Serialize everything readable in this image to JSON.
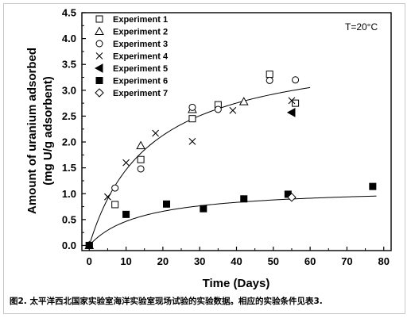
{
  "caption": "图2.  太平洋西北国家实验室海洋实验室现场试验的实验数据。相应的实验条件见表3.",
  "chart_data": {
    "type": "scatter",
    "title": "",
    "xlabel": "Time (Days)",
    "ylabel_line1": "Amount of uranium adsorbed",
    "ylabel_line2": "(mg U/g adsorbent)",
    "annotation": "T=20°C",
    "xlim": [
      -2,
      82
    ],
    "ylim": [
      -0.1,
      4.5
    ],
    "xticks": [
      "0",
      "10",
      "20",
      "30",
      "40",
      "50",
      "60",
      "70",
      "80"
    ],
    "yticks": [
      "0.0",
      "0.5",
      "1.0",
      "1.5",
      "2.0",
      "2.5",
      "3.0",
      "3.5",
      "4.0",
      "4.5"
    ],
    "xtick_values": [
      0,
      10,
      20,
      30,
      40,
      50,
      60,
      70,
      80
    ],
    "ytick_values": [
      0,
      0.5,
      1.0,
      1.5,
      2.0,
      2.5,
      3.0,
      3.5,
      4.0,
      4.5
    ],
    "legend_position": "top-left",
    "series": [
      {
        "name": "Experiment 1",
        "marker": "square-open",
        "points": [
          [
            0,
            0
          ],
          [
            7,
            0.79
          ],
          [
            14,
            1.66
          ],
          [
            28,
            2.45
          ],
          [
            35,
            2.72
          ],
          [
            49,
            3.31
          ],
          [
            56,
            2.75
          ]
        ]
      },
      {
        "name": "Experiment 2",
        "marker": "triangle-open",
        "points": [
          [
            0,
            0
          ],
          [
            14,
            1.93
          ],
          [
            28,
            2.63
          ],
          [
            42,
            2.78
          ]
        ]
      },
      {
        "name": "Experiment 3",
        "marker": "circle-open",
        "points": [
          [
            0,
            0
          ],
          [
            7,
            1.11
          ],
          [
            14,
            1.48
          ],
          [
            28,
            2.67
          ],
          [
            35,
            2.63
          ],
          [
            49,
            3.19
          ],
          [
            56,
            3.2
          ]
        ]
      },
      {
        "name": "Experiment 4",
        "marker": "x",
        "points": [
          [
            0,
            0
          ],
          [
            5,
            0.94
          ],
          [
            10,
            1.6
          ],
          [
            18,
            2.17
          ],
          [
            28,
            2.01
          ],
          [
            39,
            2.61
          ],
          [
            55,
            2.8
          ]
        ]
      },
      {
        "name": "Experiment 5",
        "marker": "triangle-left-filled",
        "points": [
          [
            55,
            2.57
          ]
        ]
      },
      {
        "name": "Experiment 6",
        "marker": "square-filled",
        "points": [
          [
            0,
            0
          ],
          [
            10,
            0.6
          ],
          [
            21,
            0.8
          ],
          [
            31,
            0.71
          ],
          [
            42,
            0.9
          ],
          [
            54,
            0.99
          ],
          [
            77,
            1.14
          ]
        ]
      },
      {
        "name": "Experiment 7",
        "marker": "diamond-open",
        "points": [
          [
            55,
            0.93
          ]
        ]
      }
    ],
    "fit_curves": [
      {
        "qmax": 3.9,
        "k": 0.06,
        "x_end": 60
      },
      {
        "qmax": 1.13,
        "k": 0.07,
        "x_end": 78
      }
    ]
  }
}
